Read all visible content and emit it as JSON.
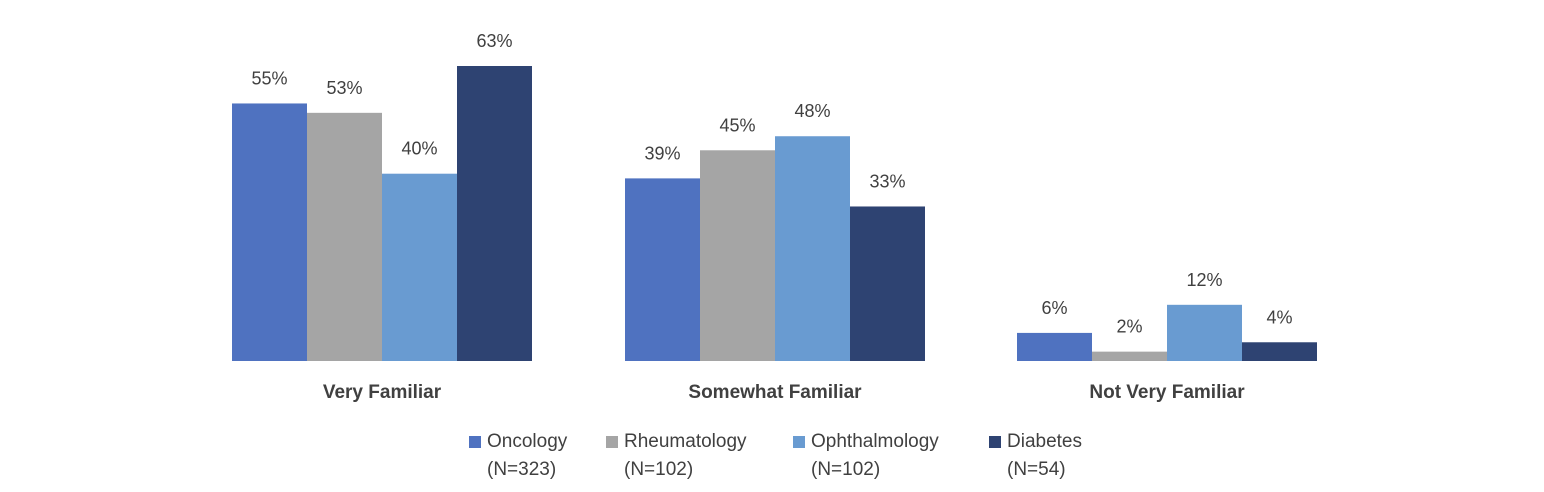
{
  "chart_data": {
    "type": "bar",
    "categories": [
      "Very Familiar",
      "Somewhat Familiar",
      "Not Very Familiar"
    ],
    "series": [
      {
        "name": "Oncology",
        "subtitle": "(N=323)",
        "color": "#4F72C0",
        "values": [
          55,
          39,
          6
        ],
        "labels": [
          "55%",
          "39%",
          "6%"
        ]
      },
      {
        "name": "Rheumatology",
        "subtitle": "(N=102)",
        "color": "#A5A5A5",
        "values": [
          53,
          45,
          2
        ],
        "labels": [
          "53%",
          "45%",
          "2%"
        ]
      },
      {
        "name": "Ophthalmology",
        "subtitle": "(N=102)",
        "color": "#699BD1",
        "values": [
          40,
          48,
          12
        ],
        "labels": [
          "40%",
          "48%",
          "12%"
        ]
      },
      {
        "name": "Diabetes",
        "subtitle": "(N=54)",
        "color": "#2E4372",
        "values": [
          63,
          33,
          4
        ],
        "labels": [
          "63%",
          "33%",
          "4%"
        ]
      }
    ],
    "ylim": [
      0,
      63
    ],
    "grid": false,
    "legend_position": "bottom"
  }
}
